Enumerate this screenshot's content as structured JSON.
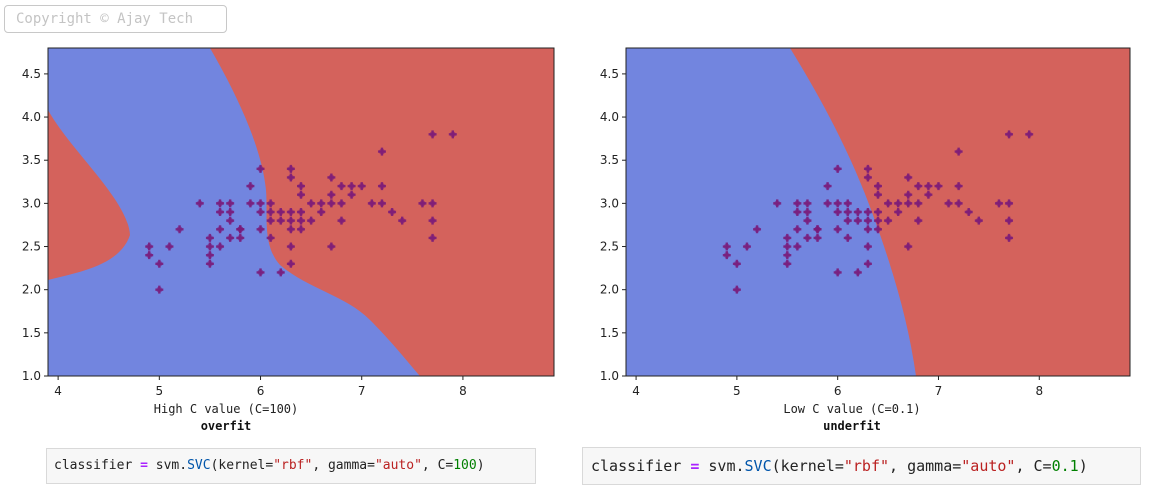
{
  "watermark": "Copyright © Ajay Tech",
  "colors": {
    "blue_region": "#7285df",
    "red_region": "#d4625c",
    "points": "#7a1a7a"
  },
  "chart_data": [
    {
      "type": "scatter",
      "title": "",
      "caption": "High C value (C=100)",
      "caption_bold": "overfit",
      "xlim": [
        3.9,
        8.9
      ],
      "ylim": [
        1.0,
        4.8
      ],
      "xticks": [
        "4",
        "5",
        "6",
        "7",
        "8"
      ],
      "yticks": [
        "1.0",
        "1.5",
        "2.0",
        "2.5",
        "3.0",
        "3.5",
        "4.0",
        "4.5"
      ],
      "background": "decision regions (blue / red)",
      "points": [
        [
          4.9,
          2.5
        ],
        [
          4.9,
          2.4
        ],
        [
          5.0,
          2.3
        ],
        [
          5.0,
          2.0
        ],
        [
          5.1,
          2.5
        ],
        [
          5.2,
          2.7
        ],
        [
          5.4,
          3.0
        ],
        [
          5.5,
          2.6
        ],
        [
          5.5,
          2.5
        ],
        [
          5.5,
          2.4
        ],
        [
          5.5,
          2.3
        ],
        [
          5.6,
          3.0
        ],
        [
          5.6,
          2.9
        ],
        [
          5.6,
          2.7
        ],
        [
          5.6,
          2.5
        ],
        [
          5.7,
          3.0
        ],
        [
          5.7,
          2.9
        ],
        [
          5.7,
          2.8
        ],
        [
          5.7,
          2.6
        ],
        [
          5.8,
          2.7
        ],
        [
          5.8,
          2.6
        ],
        [
          5.8,
          2.7
        ],
        [
          5.9,
          3.2
        ],
        [
          5.9,
          3.0
        ],
        [
          6.0,
          3.4
        ],
        [
          6.0,
          3.0
        ],
        [
          6.0,
          2.9
        ],
        [
          6.0,
          2.7
        ],
        [
          6.0,
          2.2
        ],
        [
          6.1,
          3.0
        ],
        [
          6.1,
          2.9
        ],
        [
          6.1,
          2.8
        ],
        [
          6.1,
          2.6
        ],
        [
          6.2,
          2.9
        ],
        [
          6.2,
          2.8
        ],
        [
          6.2,
          2.2
        ],
        [
          6.3,
          3.4
        ],
        [
          6.3,
          3.3
        ],
        [
          6.3,
          2.9
        ],
        [
          6.3,
          2.8
        ],
        [
          6.3,
          2.7
        ],
        [
          6.3,
          2.5
        ],
        [
          6.3,
          2.3
        ],
        [
          6.4,
          3.2
        ],
        [
          6.4,
          3.1
        ],
        [
          6.4,
          2.9
        ],
        [
          6.4,
          2.8
        ],
        [
          6.4,
          2.7
        ],
        [
          6.5,
          3.0
        ],
        [
          6.5,
          2.8
        ],
        [
          6.6,
          3.0
        ],
        [
          6.6,
          2.9
        ],
        [
          6.7,
          3.3
        ],
        [
          6.7,
          3.1
        ],
        [
          6.7,
          3.0
        ],
        [
          6.7,
          2.5
        ],
        [
          6.8,
          3.2
        ],
        [
          6.8,
          3.0
        ],
        [
          6.8,
          2.8
        ],
        [
          6.9,
          3.1
        ],
        [
          6.9,
          3.2
        ],
        [
          7.0,
          3.2
        ],
        [
          7.1,
          3.0
        ],
        [
          7.2,
          3.6
        ],
        [
          7.2,
          3.2
        ],
        [
          7.2,
          3.0
        ],
        [
          7.3,
          2.9
        ],
        [
          7.4,
          2.8
        ],
        [
          7.6,
          3.0
        ],
        [
          7.7,
          3.8
        ],
        [
          7.7,
          3.0
        ],
        [
          7.7,
          2.8
        ],
        [
          7.7,
          2.6
        ],
        [
          7.9,
          3.8
        ]
      ]
    },
    {
      "type": "scatter",
      "title": "",
      "caption": "Low C value (C=0.1)",
      "caption_bold": "underfit",
      "xlim": [
        3.9,
        8.9
      ],
      "ylim": [
        1.0,
        4.8
      ],
      "xticks": [
        "4",
        "5",
        "6",
        "7",
        "8"
      ],
      "yticks": [
        "1.0",
        "1.5",
        "2.0",
        "2.5",
        "3.0",
        "3.5",
        "4.0",
        "4.5"
      ],
      "background": "decision regions (blue / red)",
      "points": [
        [
          4.9,
          2.5
        ],
        [
          4.9,
          2.4
        ],
        [
          5.0,
          2.3
        ],
        [
          5.0,
          2.0
        ],
        [
          5.1,
          2.5
        ],
        [
          5.2,
          2.7
        ],
        [
          5.4,
          3.0
        ],
        [
          5.5,
          2.6
        ],
        [
          5.5,
          2.5
        ],
        [
          5.5,
          2.4
        ],
        [
          5.5,
          2.3
        ],
        [
          5.6,
          3.0
        ],
        [
          5.6,
          2.9
        ],
        [
          5.6,
          2.7
        ],
        [
          5.6,
          2.5
        ],
        [
          5.7,
          3.0
        ],
        [
          5.7,
          2.9
        ],
        [
          5.7,
          2.8
        ],
        [
          5.7,
          2.6
        ],
        [
          5.8,
          2.7
        ],
        [
          5.8,
          2.6
        ],
        [
          5.8,
          2.7
        ],
        [
          5.9,
          3.2
        ],
        [
          5.9,
          3.0
        ],
        [
          6.0,
          3.4
        ],
        [
          6.0,
          3.0
        ],
        [
          6.0,
          2.9
        ],
        [
          6.0,
          2.7
        ],
        [
          6.0,
          2.2
        ],
        [
          6.1,
          3.0
        ],
        [
          6.1,
          2.9
        ],
        [
          6.1,
          2.8
        ],
        [
          6.1,
          2.6
        ],
        [
          6.2,
          2.9
        ],
        [
          6.2,
          2.8
        ],
        [
          6.2,
          2.2
        ],
        [
          6.3,
          3.4
        ],
        [
          6.3,
          3.3
        ],
        [
          6.3,
          2.9
        ],
        [
          6.3,
          2.8
        ],
        [
          6.3,
          2.7
        ],
        [
          6.3,
          2.5
        ],
        [
          6.3,
          2.3
        ],
        [
          6.4,
          3.2
        ],
        [
          6.4,
          3.1
        ],
        [
          6.4,
          2.9
        ],
        [
          6.4,
          2.8
        ],
        [
          6.4,
          2.7
        ],
        [
          6.5,
          3.0
        ],
        [
          6.5,
          2.8
        ],
        [
          6.6,
          3.0
        ],
        [
          6.6,
          2.9
        ],
        [
          6.7,
          3.3
        ],
        [
          6.7,
          3.1
        ],
        [
          6.7,
          3.0
        ],
        [
          6.7,
          2.5
        ],
        [
          6.8,
          3.2
        ],
        [
          6.8,
          3.0
        ],
        [
          6.8,
          2.8
        ],
        [
          6.9,
          3.1
        ],
        [
          6.9,
          3.2
        ],
        [
          7.0,
          3.2
        ],
        [
          7.1,
          3.0
        ],
        [
          7.2,
          3.6
        ],
        [
          7.2,
          3.2
        ],
        [
          7.2,
          3.0
        ],
        [
          7.3,
          2.9
        ],
        [
          7.4,
          2.8
        ],
        [
          7.6,
          3.0
        ],
        [
          7.7,
          3.8
        ],
        [
          7.7,
          3.0
        ],
        [
          7.7,
          2.8
        ],
        [
          7.7,
          2.6
        ],
        [
          7.9,
          3.8
        ]
      ]
    }
  ],
  "code_blocks": [
    {
      "prefix": "classifier",
      "eq": "=",
      "module": " svm.",
      "fn": "SVC",
      "open": "(kernel=",
      "k": "\"rbf\"",
      "mid": ", gamma=",
      "g": "\"auto\"",
      "c": ", C=",
      "cval": "100",
      "close": ")"
    },
    {
      "prefix": "classifier",
      "eq": "=",
      "module": " svm.",
      "fn": "SVC",
      "open": "(kernel=",
      "k": "\"rbf\"",
      "mid": ", gamma=",
      "g": "\"auto\"",
      "c": ", C=",
      "cval": "0.1",
      "close": ")"
    }
  ]
}
